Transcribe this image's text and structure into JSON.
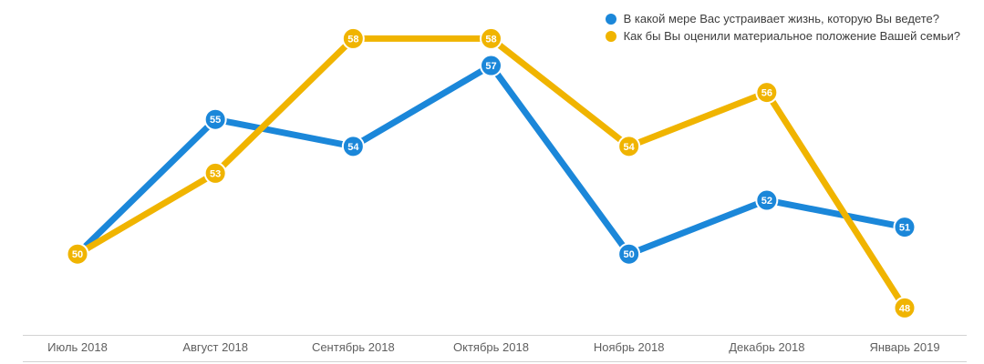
{
  "chart_data": {
    "type": "line",
    "categories": [
      "Июль 2018",
      "Август 2018",
      "Сентябрь 2018",
      "Октябрь 2018",
      "Ноябрь 2018",
      "Декабрь 2018",
      "Январь 2019"
    ],
    "series": [
      {
        "name": "В какой мере Вас устраивает жизнь, которую Вы ведете?",
        "color": "#1b87d9",
        "values": [
          50,
          55,
          54,
          57,
          50,
          52,
          51
        ]
      },
      {
        "name": "Как бы Вы оценили материальное положение Вашей семьи?",
        "color": "#f0b400",
        "values": [
          50,
          53,
          58,
          58,
          54,
          56,
          48
        ]
      }
    ],
    "title": "",
    "xlabel": "",
    "ylabel": "",
    "ylim": [
      47,
      59.4
    ],
    "grid": false,
    "legend_position": "top-right",
    "data_labels": true
  },
  "legend": {
    "items": [
      {
        "label": "В какой мере Вас устраивает жизнь, которую Вы ведете?",
        "color": "#1b87d9"
      },
      {
        "label": "Как бы Вы оценили материальное положение Вашей семьи?",
        "color": "#f0b400"
      }
    ]
  },
  "axis": {
    "label_color": "#5f5f5f",
    "line_color": "#d2d2d2",
    "label_font_size": 13
  },
  "marker": {
    "text_color": "#ffffff",
    "ring_color": "#ffffff",
    "font_size": 11
  }
}
